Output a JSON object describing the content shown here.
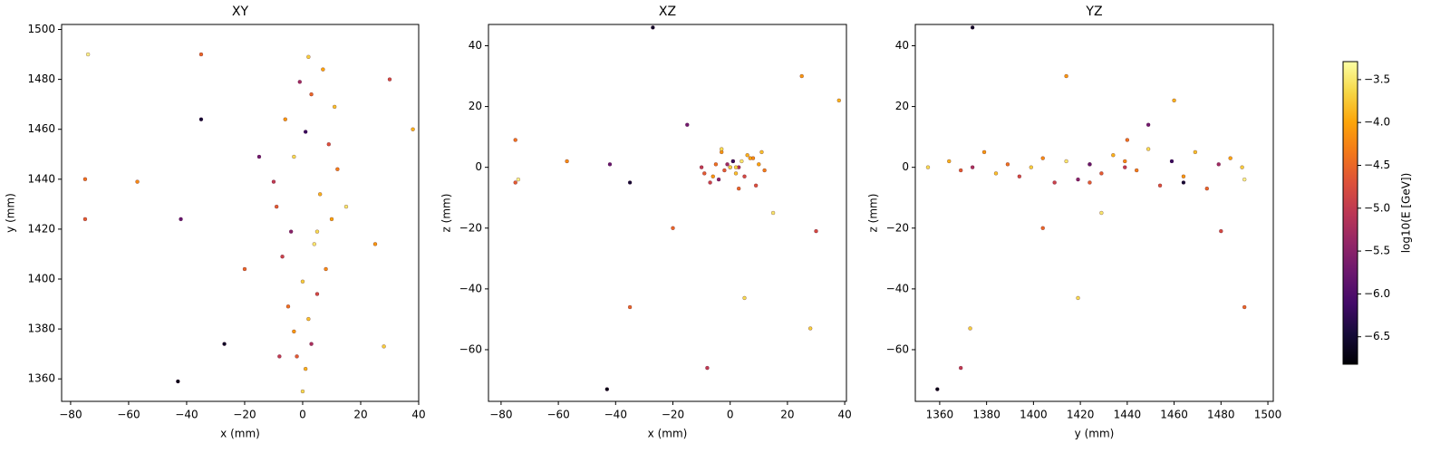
{
  "chart_data": [
    {
      "type": "scatter",
      "title": "XY",
      "x_label": "x (mm)",
      "y_label": "y (mm)",
      "xlim": [
        -83.1,
        40.0
      ],
      "ylim": [
        1351,
        1502
      ],
      "xticks": [
        {
          "value": -80,
          "label": "−80"
        },
        {
          "value": -60,
          "label": "−60"
        },
        {
          "value": -40,
          "label": "−40"
        },
        {
          "value": -20,
          "label": "−20"
        },
        0,
        20,
        40
      ],
      "yticks": [
        1360,
        1380,
        1400,
        1420,
        1440,
        1460,
        1480,
        1500
      ],
      "x": [
        0,
        1,
        -2,
        3,
        -3,
        2,
        -5,
        5,
        0,
        8,
        -7,
        4,
        -4,
        10,
        -9,
        6,
        -10,
        12,
        -3,
        9,
        1,
        -6,
        11,
        3,
        -1,
        7,
        2,
        -75,
        -75,
        -57,
        -43,
        -42,
        -35,
        -35,
        -27,
        -8,
        28,
        38,
        30,
        25,
        -20,
        15,
        -15,
        5,
        -74
      ],
      "values": [
        1355,
        1364,
        1369,
        1374,
        1379,
        1384,
        1389,
        1394,
        1399,
        1404,
        1409,
        1414,
        1419,
        1424,
        1429,
        1434,
        1439,
        1444,
        1449,
        1454,
        1459,
        1464,
        1469,
        1474,
        1479,
        1484,
        1489,
        1440,
        1424,
        1439,
        1359,
        1424,
        1490,
        1464,
        1374,
        1369,
        1373,
        1460,
        1480,
        1414,
        1404,
        1429,
        1449,
        1419,
        1490
      ],
      "color_values": [
        -3.6,
        -3.9,
        -4.6,
        -5.2,
        -4.1,
        -3.8,
        -4.4,
        -4.8,
        -3.7,
        -4.2,
        -4.9,
        -3.5,
        -5.5,
        -4.0,
        -4.6,
        -3.9,
        -5.0,
        -4.3,
        -3.6,
        -4.7,
        -6.2,
        -4.1,
        -3.8,
        -4.5,
        -5.3,
        -4.0,
        -3.7,
        -4.4,
        -4.6,
        -4.2,
        -6.7,
        -5.8,
        -4.5,
        -6.5,
        -6.6,
        -5.0,
        -3.7,
        -3.9,
        -4.8,
        -4.1,
        -4.5,
        -3.5,
        -5.7,
        -3.6,
        -3.4
      ]
    },
    {
      "type": "scatter",
      "title": "XZ",
      "x_label": "x (mm)",
      "y_label": "z (mm)",
      "xlim": [
        -84.4,
        40.6
      ],
      "ylim": [
        -77,
        47
      ],
      "xticks": [
        {
          "value": -80,
          "label": "−80"
        },
        {
          "value": -60,
          "label": "−60"
        },
        {
          "value": -40,
          "label": "−40"
        },
        {
          "value": -20,
          "label": "−20"
        },
        0,
        20,
        40
      ],
      "yticks": [
        {
          "value": -60,
          "label": "−60"
        },
        {
          "value": -40,
          "label": "−40"
        },
        {
          "value": -20,
          "label": "−20"
        },
        0,
        20,
        40
      ],
      "x": [
        0,
        1,
        -2,
        3,
        -3,
        2,
        -5,
        5,
        0,
        8,
        -7,
        4,
        -4,
        10,
        -9,
        6,
        -10,
        12,
        -3,
        9,
        1,
        -6,
        11,
        3,
        -1,
        7,
        2,
        -75,
        -75,
        -57,
        -43,
        -42,
        -35,
        -35,
        -27,
        -8,
        28,
        38,
        30,
        25,
        -20,
        15,
        -15,
        5,
        -74
      ],
      "values": [
        0,
        2,
        -1,
        0,
        5,
        -2,
        1,
        -3,
        0,
        3,
        -5,
        2,
        -4,
        1,
        -2,
        4,
        0,
        -1,
        6,
        -6,
        2,
        -3,
        5,
        -7,
        1,
        3,
        0,
        9,
        -5,
        2,
        -73,
        1,
        -46,
        -5,
        46,
        -66,
        -53,
        22,
        -21,
        30,
        -20,
        -15,
        14,
        -43,
        -4
      ],
      "color_values": [
        -3.6,
        -3.9,
        -4.6,
        -5.2,
        -4.1,
        -3.8,
        -4.4,
        -4.8,
        -3.7,
        -4.2,
        -4.9,
        -3.5,
        -5.5,
        -4.0,
        -4.6,
        -3.9,
        -5.0,
        -4.3,
        -3.6,
        -4.7,
        -6.2,
        -4.1,
        -3.8,
        -4.5,
        -5.3,
        -4.0,
        -3.7,
        -4.4,
        -4.6,
        -4.2,
        -6.7,
        -5.8,
        -4.5,
        -6.5,
        -6.6,
        -5.0,
        -3.7,
        -3.9,
        -4.8,
        -4.1,
        -4.5,
        -3.5,
        -5.7,
        -3.6,
        -3.4
      ]
    },
    {
      "type": "scatter",
      "title": "YZ",
      "x_label": "y (mm)",
      "y_label": "z (mm)",
      "xlim": [
        1349.6,
        1502.3
      ],
      "ylim": [
        -77,
        47
      ],
      "xticks": [
        1360,
        1380,
        1400,
        1420,
        1440,
        1460,
        1480,
        1500
      ],
      "yticks": [
        {
          "value": -60,
          "label": "−60"
        },
        {
          "value": -40,
          "label": "−40"
        },
        {
          "value": -20,
          "label": "−20"
        },
        0,
        20,
        40
      ],
      "x": [
        1355,
        1364,
        1369,
        1374,
        1379,
        1384,
        1389,
        1394,
        1399,
        1404,
        1409,
        1414,
        1419,
        1424,
        1429,
        1434,
        1439,
        1444,
        1449,
        1454,
        1459,
        1464,
        1469,
        1474,
        1479,
        1484,
        1489,
        1440,
        1424,
        1439,
        1359,
        1424,
        1490,
        1464,
        1374,
        1369,
        1373,
        1460,
        1480,
        1414,
        1404,
        1429,
        1449,
        1419,
        1490
      ],
      "values": [
        0,
        2,
        -1,
        0,
        5,
        -2,
        1,
        -3,
        0,
        3,
        -5,
        2,
        -4,
        1,
        -2,
        4,
        0,
        -1,
        6,
        -6,
        2,
        -3,
        5,
        -7,
        1,
        3,
        0,
        9,
        -5,
        2,
        -73,
        1,
        -46,
        -5,
        46,
        -66,
        -53,
        22,
        -21,
        30,
        -20,
        -15,
        14,
        -43,
        -4
      ],
      "color_values": [
        -3.6,
        -3.9,
        -4.6,
        -5.2,
        -4.1,
        -3.8,
        -4.4,
        -4.8,
        -3.7,
        -4.2,
        -4.9,
        -3.5,
        -5.5,
        -4.0,
        -4.6,
        -3.9,
        -5.0,
        -4.3,
        -3.6,
        -4.7,
        -6.2,
        -4.1,
        -3.8,
        -4.5,
        -5.3,
        -4.0,
        -3.7,
        -4.4,
        -4.6,
        -4.2,
        -6.7,
        -5.8,
        -4.5,
        -6.5,
        -6.6,
        -5.0,
        -3.7,
        -3.9,
        -4.8,
        -4.1,
        -4.5,
        -3.5,
        -5.7,
        -3.6,
        -3.4
      ]
    },
    {
      "type": "colorbar",
      "label": "log10(E [GeV])",
      "colormap": "inferno",
      "lim": [
        -6.82,
        -3.29
      ],
      "ticks": [
        {
          "value": -3.5,
          "label": "−3.5"
        },
        {
          "value": -4.0,
          "label": "−4.0"
        },
        {
          "value": -4.5,
          "label": "−4.5"
        },
        {
          "value": -5.0,
          "label": "−5.0"
        },
        {
          "value": -5.5,
          "label": "−5.5"
        },
        {
          "value": -6.0,
          "label": "−6.0"
        },
        {
          "value": -6.5,
          "label": "−6.5"
        }
      ]
    }
  ]
}
